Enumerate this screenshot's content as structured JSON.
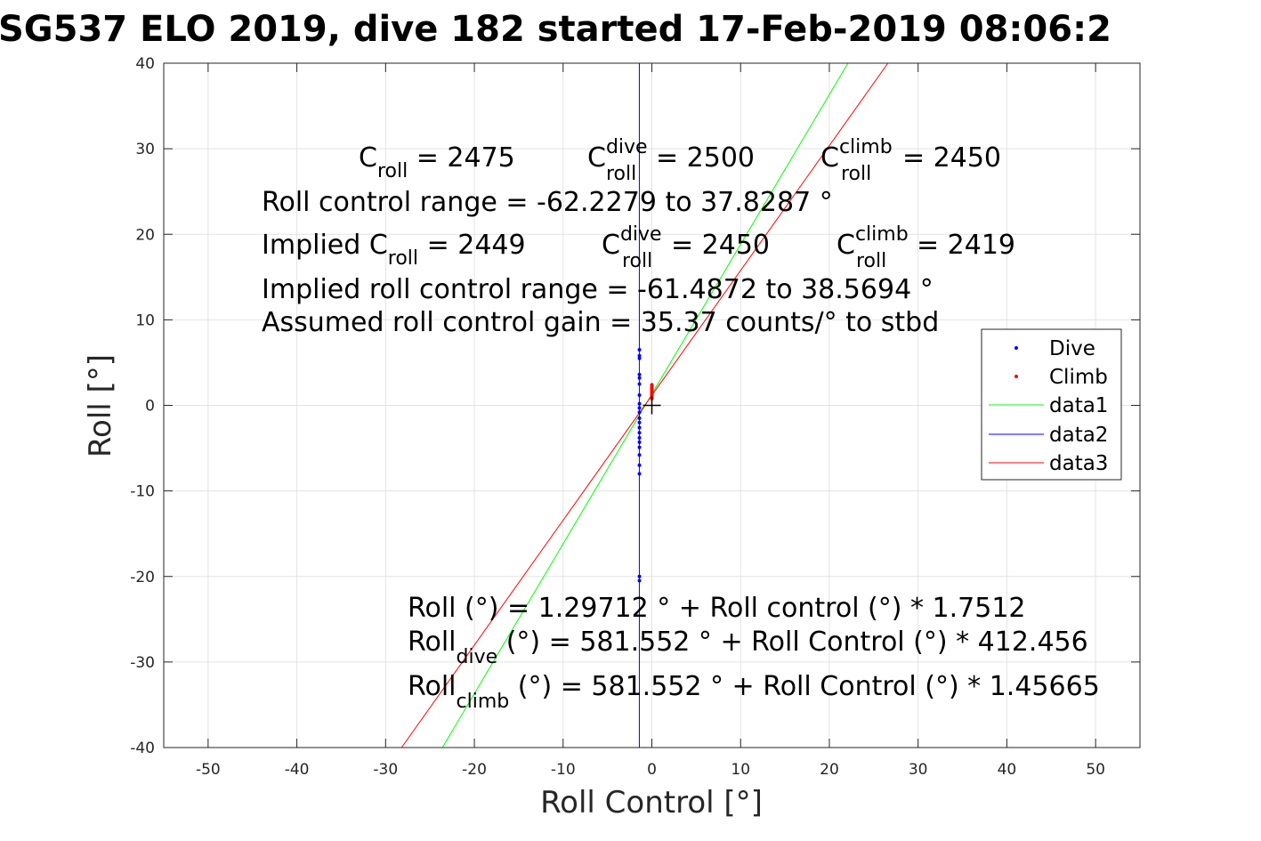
{
  "chart_data": {
    "type": "scatter",
    "title": "SG537 ELO 2019, dive 182 started 17-Feb-2019 08:06:2",
    "xlabel": "Roll Control [°]",
    "ylabel": "Roll [°]",
    "xlim": [
      -55,
      55
    ],
    "ylim": [
      -40,
      40
    ],
    "xticks": [
      -50,
      -40,
      -30,
      -20,
      -10,
      0,
      10,
      20,
      30,
      40,
      50
    ],
    "yticks": [
      -40,
      -30,
      -20,
      -10,
      0,
      10,
      20,
      30,
      40
    ],
    "grid": true,
    "legend_position": "right, just above middle",
    "series": [
      {
        "name": "Dive",
        "kind": "points",
        "color": "#0000ff",
        "points": [
          [
            -1.4,
            6.5
          ],
          [
            -1.4,
            5.8
          ],
          [
            -1.4,
            5.5
          ],
          [
            -1.4,
            3.6
          ],
          [
            -1.4,
            3.2
          ],
          [
            -1.4,
            2.5
          ],
          [
            -1.4,
            1.2
          ],
          [
            -1.4,
            0.2
          ],
          [
            -1.4,
            -0.3
          ],
          [
            -1.4,
            -0.8
          ],
          [
            -1.4,
            -1.5
          ],
          [
            -1.4,
            -2.0
          ],
          [
            -1.4,
            -2.6
          ],
          [
            -1.4,
            -3.2
          ],
          [
            -1.4,
            -3.8
          ],
          [
            -1.4,
            -4.3
          ],
          [
            -1.4,
            -4.9
          ],
          [
            -1.4,
            -5.8
          ],
          [
            -1.4,
            -7.0
          ],
          [
            -1.4,
            -8.0
          ],
          [
            -1.4,
            -20.0
          ],
          [
            -1.4,
            -20.5
          ]
        ]
      },
      {
        "name": "Climb",
        "kind": "points",
        "color": "#ff0000",
        "points": [
          [
            0.0,
            0.8
          ],
          [
            0.0,
            1.0
          ],
          [
            0.0,
            1.2
          ],
          [
            0.0,
            1.4
          ],
          [
            0.0,
            1.6
          ],
          [
            0.0,
            1.8
          ],
          [
            0.0,
            2.0
          ],
          [
            0.0,
            2.2
          ],
          [
            0.0,
            2.4
          ]
        ]
      },
      {
        "name": "data1",
        "kind": "line",
        "color": "#00ff00",
        "x": [
          -23.6,
          22.1
        ],
        "y": [
          -40,
          40
        ]
      },
      {
        "name": "data2",
        "kind": "line",
        "color": "#0000ff",
        "x": [
          -1.41,
          -1.41
        ],
        "y": [
          -40,
          40
        ]
      },
      {
        "name": "data3",
        "kind": "line",
        "color": "#ff0000",
        "x": [
          -28.2,
          26.6
        ],
        "y": [
          -40,
          40
        ]
      }
    ],
    "marker": {
      "x": 0,
      "y": 0,
      "symbol": "+",
      "color": "#000000"
    }
  },
  "annotations": {
    "row1": {
      "c_roll": {
        "main": "C",
        "sub": "roll",
        "rest": " = 2475"
      },
      "c_dive": {
        "main": "C",
        "sup": "dive",
        "sub": "roll",
        "rest": " = 2500"
      },
      "c_climb": {
        "main": "C",
        "sup": "climb",
        "sub": "roll",
        "rest": " = 2450"
      }
    },
    "range": "Roll control range = -62.2279 to 37.8287 °",
    "row3": {
      "implied": {
        "main": "Implied C",
        "sub": "roll",
        "rest": " = 2449"
      },
      "c_dive": {
        "main": "C",
        "sup": "dive",
        "sub": "roll",
        "rest": " = 2450"
      },
      "c_climb": {
        "main": "C",
        "sup": "climb",
        "sub": "roll",
        "rest": " = 2419"
      }
    },
    "implied_range": "Implied roll control range = -61.4872 to 38.5694 °",
    "gain": "Assumed roll control gain = 35.37 counts/° to stbd",
    "fit": "Roll (°) = 1.29712 ° + Roll control (°) * 1.7512",
    "fit_dive": {
      "main": "Roll",
      "sub": "dive",
      "rest": " (°) = 581.552 ° + Roll Control (°) * 412.456"
    },
    "fit_climb": {
      "main": "Roll",
      "sub": "climb",
      "rest": " (°) = 581.552 ° + Roll Control (°) * 1.45665"
    }
  }
}
